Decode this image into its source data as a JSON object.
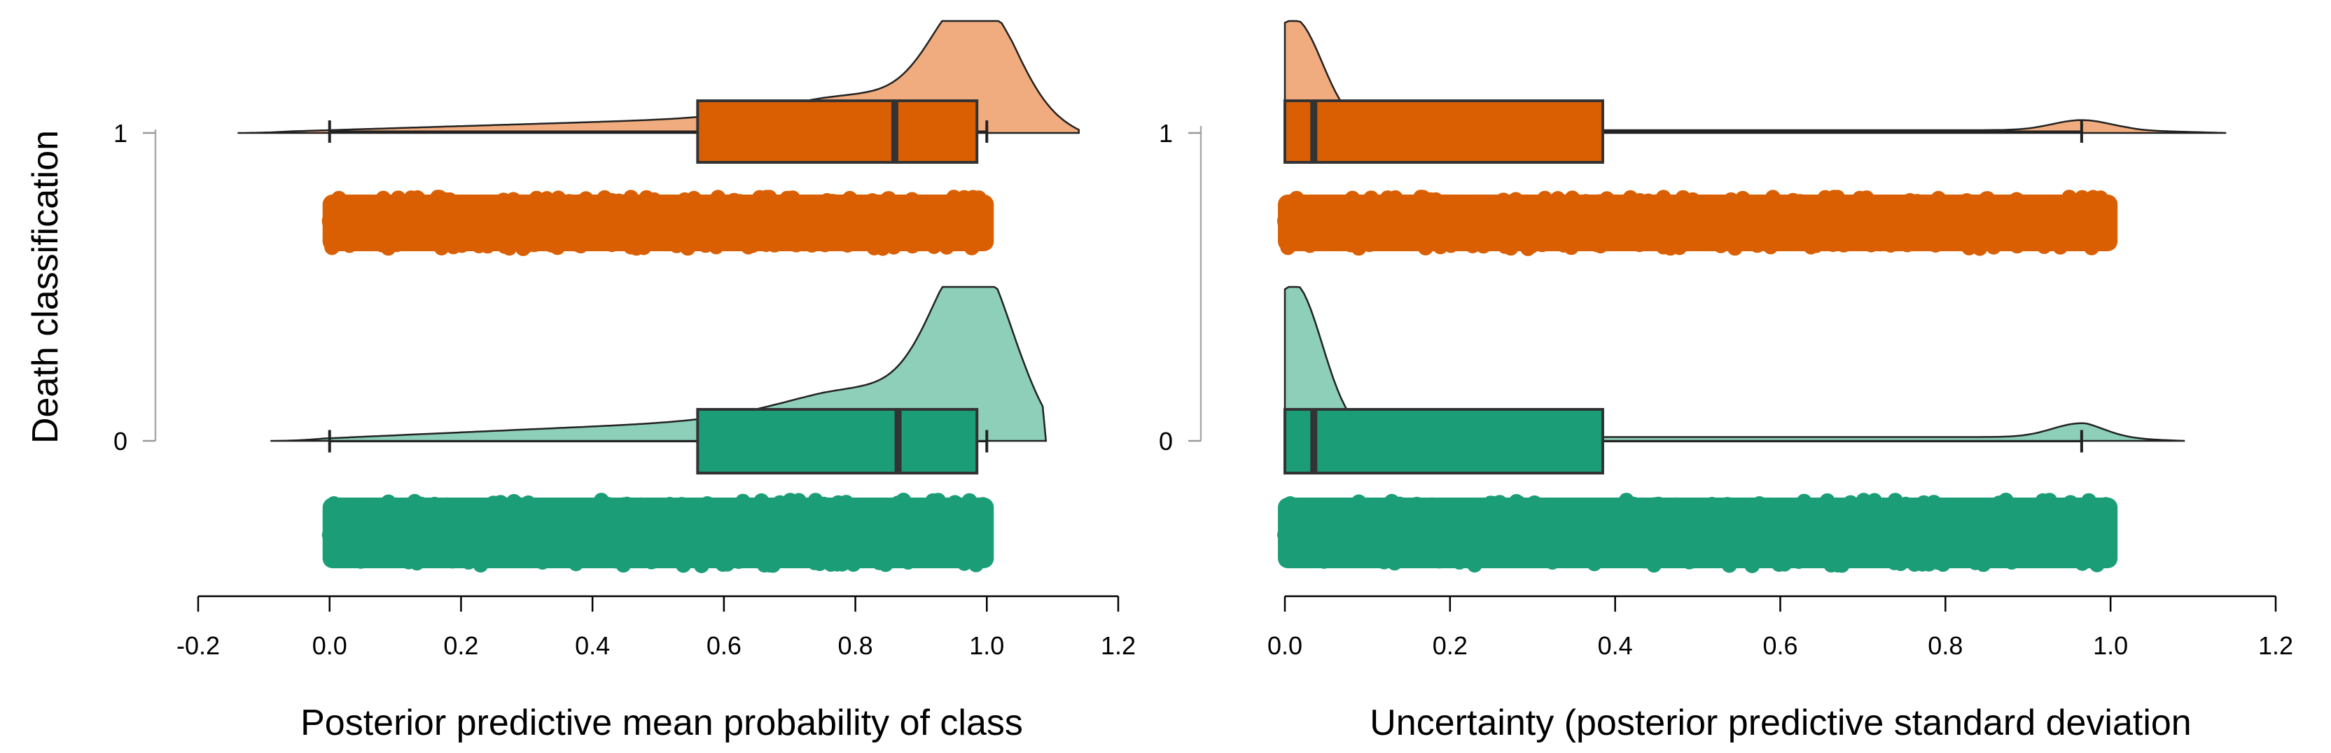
{
  "y_axis_title": "Death classification",
  "chart_data": [
    {
      "type": "raincloud",
      "panel": "left",
      "xlabel": "Posterior predictive mean probability of class",
      "ylabel": "Death classification",
      "xlim": [
        -0.2,
        1.2
      ],
      "xticks": [
        "-0.2",
        "0.0",
        "0.2",
        "0.4",
        "0.6",
        "0.8",
        "1.0",
        "1.2"
      ],
      "xtick_values": [
        -0.2,
        0.0,
        0.2,
        0.4,
        0.6,
        0.8,
        1.0,
        1.2
      ],
      "categories": [
        "0",
        "1"
      ],
      "series": [
        {
          "name": "1",
          "color": "#D95F02",
          "density_color": "#F0AC7E",
          "density_range": [
            -0.14,
            1.14
          ],
          "density_peak": 0.98,
          "density_shape": "left-skewed",
          "box": {
            "whisker_low": 0.0,
            "q1": 0.56,
            "median": 0.86,
            "q3": 0.985,
            "whisker_high": 1.0
          },
          "points_range": [
            0.0,
            1.0
          ]
        },
        {
          "name": "0",
          "color": "#1B9E77",
          "density_color": "#8DCFB8",
          "density_range": [
            -0.09,
            1.09
          ],
          "density_peak": 0.98,
          "density_shape": "left-skewed",
          "box": {
            "whisker_low": 0.0,
            "q1": 0.56,
            "median": 0.865,
            "q3": 0.985,
            "whisker_high": 1.0
          },
          "points_range": [
            0.0,
            1.0
          ]
        }
      ]
    },
    {
      "type": "raincloud",
      "panel": "right",
      "xlabel": "Uncertainty (posterior predictive standard deviation",
      "ylabel": "Death classification",
      "xlim": [
        0.0,
        1.2
      ],
      "xticks": [
        "0.0",
        "0.2",
        "0.4",
        "0.6",
        "0.8",
        "1.0",
        "1.2"
      ],
      "xtick_values": [
        0.0,
        0.2,
        0.4,
        0.6,
        0.8,
        1.0,
        1.2
      ],
      "categories": [
        "0",
        "1"
      ],
      "series": [
        {
          "name": "1",
          "color": "#D95F02",
          "density_color": "#F0AC7E",
          "density_range": [
            0.0,
            1.14
          ],
          "density_peak": 0.01,
          "density_shape": "right-skewed",
          "box": {
            "whisker_low": 0.0,
            "q1": 0.0,
            "median": 0.035,
            "q3": 0.385,
            "whisker_high": 0.965
          },
          "points_range": [
            0.0,
            1.0
          ]
        },
        {
          "name": "0",
          "color": "#1B9E77",
          "density_color": "#8DCFB8",
          "density_range": [
            0.0,
            1.09
          ],
          "density_peak": 0.01,
          "density_shape": "right-skewed",
          "box": {
            "whisker_low": 0.0,
            "q1": 0.0,
            "median": 0.035,
            "q3": 0.385,
            "whisker_high": 0.965
          },
          "points_range": [
            0.0,
            1.0
          ]
        }
      ]
    }
  ]
}
